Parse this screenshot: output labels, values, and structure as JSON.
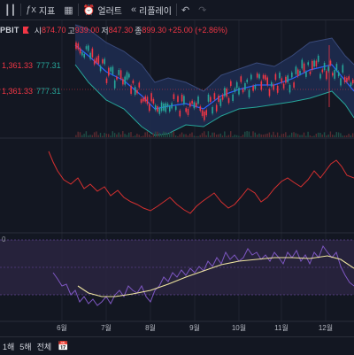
{
  "toolbar": {
    "items": [
      {
        "icon": "chart-style-icon",
        "label": ""
      },
      {
        "icon": "indicators-icon",
        "label": "지표"
      },
      {
        "icon": "layout-icon",
        "label": ""
      },
      {
        "icon": "alert-icon",
        "label": "얼러트"
      },
      {
        "icon": "replay-icon",
        "label": "리플레이"
      },
      {
        "icon": "undo-icon",
        "label": ""
      },
      {
        "icon": "redo-icon",
        "label": ""
      }
    ]
  },
  "header": {
    "symbol": "PBIT",
    "open_label": "시",
    "open": "874.70",
    "high_label": "고",
    "high": "939.00",
    "low_label": "저",
    "low": "847.30",
    "close_label": "종",
    "close": "899.30",
    "change": "+25.00 (+2.86%)"
  },
  "indicator_rows": [
    {
      "a": "1,361.33",
      "b": "777.31"
    },
    {
      "a": "1,361.33",
      "b": "777.31"
    }
  ],
  "oscillator": {
    "zero_label": "0"
  },
  "x_axis": {
    "labels": [
      "6월",
      "7월",
      "8월",
      "9월",
      "10월",
      "11월",
      "12월"
    ]
  },
  "timeframes": [
    "1해",
    "5해",
    "전체"
  ],
  "colors": {
    "up": "#26a69a",
    "down": "#f23645",
    "band_fill": "#1e2b4f",
    "rsi_fill": "#2a2440",
    "rsi_line": "#7e57c2",
    "ma_line": "#f0e6a0"
  }
}
